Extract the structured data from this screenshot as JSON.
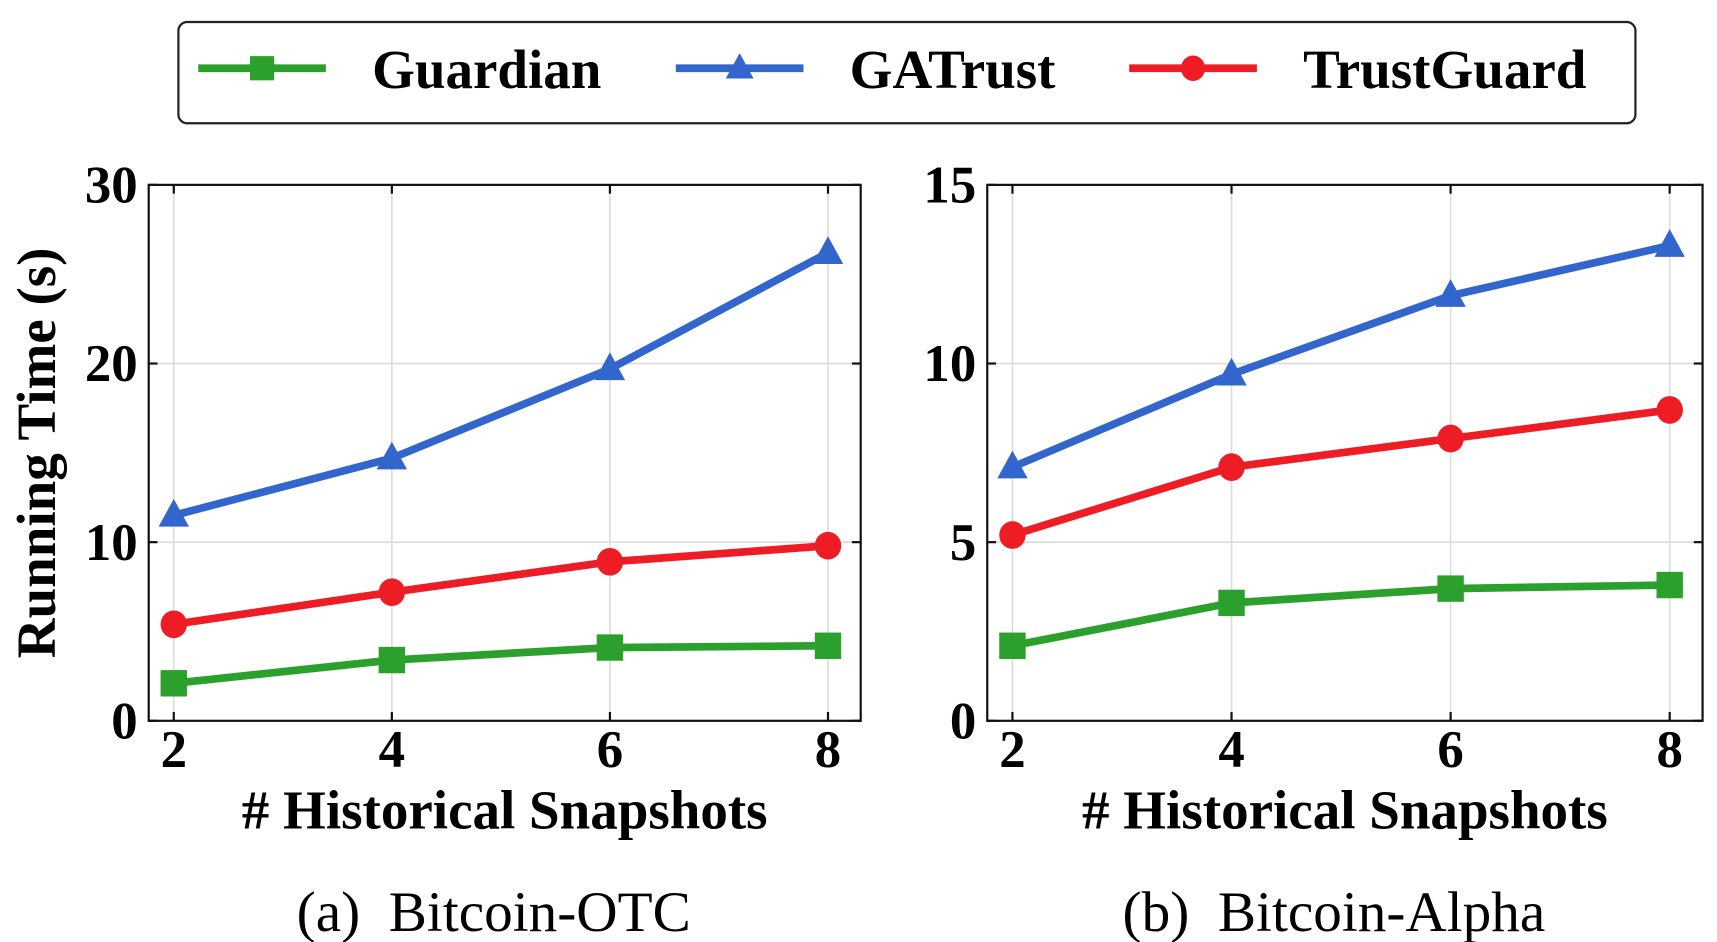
{
  "legend": [
    {
      "name": "Guardian",
      "color": "#2ca02c",
      "marker": "square"
    },
    {
      "name": "GATrust",
      "color": "#3366cc",
      "marker": "triangle"
    },
    {
      "name": "TrustGuard",
      "color": "#ee1c25",
      "marker": "circle"
    }
  ],
  "chart_data": [
    {
      "type": "line",
      "caption": "(a)  Bitcoin-OTC",
      "xlabel": "# Historical Snapshots",
      "ylabel": "Running Time (s)",
      "x": [
        2,
        4,
        6,
        8
      ],
      "xticks": [
        "2",
        "4",
        "6",
        "8"
      ],
      "yticks": [
        "0",
        "10",
        "20",
        "30"
      ],
      "ylim": [
        0,
        30
      ],
      "grid": true,
      "legend_position": "top",
      "series": [
        {
          "name": "Guardian",
          "values": [
            2.1,
            3.4,
            4.1,
            4.2
          ]
        },
        {
          "name": "GATrust",
          "values": [
            11.5,
            14.7,
            19.7,
            26.2
          ]
        },
        {
          "name": "TrustGuard",
          "values": [
            5.4,
            7.2,
            8.9,
            9.8
          ]
        }
      ]
    },
    {
      "type": "line",
      "caption": "(b)  Bitcoin-Alpha",
      "xlabel": "# Historical Snapshots",
      "ylabel": "",
      "x": [
        2,
        4,
        6,
        8
      ],
      "xticks": [
        "2",
        "4",
        "6",
        "8"
      ],
      "yticks": [
        "0",
        "5",
        "10",
        "15"
      ],
      "ylim": [
        0,
        15
      ],
      "grid": true,
      "series": [
        {
          "name": "Guardian",
          "values": [
            2.1,
            3.3,
            3.7,
            3.8
          ]
        },
        {
          "name": "GATrust",
          "values": [
            7.1,
            9.7,
            11.9,
            13.3
          ]
        },
        {
          "name": "TrustGuard",
          "values": [
            5.2,
            7.1,
            7.9,
            8.7
          ]
        }
      ]
    }
  ]
}
